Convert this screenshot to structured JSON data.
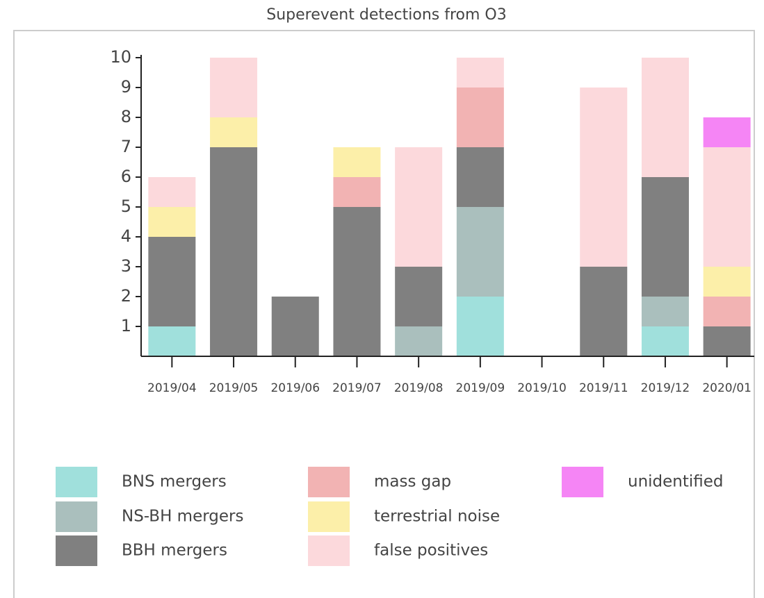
{
  "chart_data": {
    "type": "stacked-bar",
    "title": "Superevent detections from O3",
    "categories": [
      "2019/04",
      "2019/05",
      "2019/06",
      "2019/07",
      "2019/08",
      "2019/09",
      "2019/10",
      "2019/11",
      "2019/12",
      "2020/01"
    ],
    "series": [
      {
        "name": "BNS mergers",
        "color": "#a0e0dc",
        "values": [
          1,
          0,
          0,
          0,
          0,
          2,
          0,
          0,
          1,
          0
        ]
      },
      {
        "name": "NS-BH mergers",
        "color": "#aabfbd",
        "values": [
          0,
          0,
          0,
          0,
          1,
          3,
          0,
          0,
          1,
          0
        ]
      },
      {
        "name": "BBH mergers",
        "color": "#808080",
        "values": [
          3,
          7,
          2,
          5,
          2,
          2,
          0,
          3,
          4,
          1
        ]
      },
      {
        "name": "mass gap",
        "color": "#f2b3b3",
        "values": [
          0,
          0,
          0,
          1,
          0,
          2,
          0,
          0,
          0,
          1
        ]
      },
      {
        "name": "terrestrial noise",
        "color": "#fcefa9",
        "values": [
          1,
          1,
          0,
          1,
          0,
          0,
          0,
          0,
          0,
          1
        ]
      },
      {
        "name": "false positives",
        "color": "#fcd9dc",
        "values": [
          1,
          2,
          0,
          0,
          4,
          1,
          0,
          6,
          4,
          4
        ]
      },
      {
        "name": "unidentified",
        "color": "#f585f5",
        "values": [
          0,
          0,
          0,
          0,
          0,
          0,
          0,
          0,
          0,
          1
        ]
      }
    ],
    "ylim": [
      0,
      10
    ],
    "yticks": [
      1,
      2,
      3,
      4,
      5,
      6,
      7,
      8,
      9,
      10
    ]
  }
}
